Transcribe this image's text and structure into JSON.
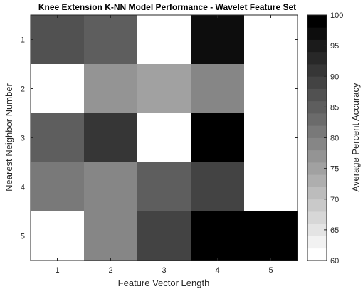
{
  "chart_data": {
    "type": "heatmap",
    "title": "Knee Extension K-NN Model Performance - Wavelet Feature Set",
    "xlabel": "Feature Vector Length",
    "ylabel": "Nearest Neighbor Number",
    "colorbar_label": "Average Percent Accuracy",
    "x_categories": [
      "1",
      "2",
      "3",
      "4",
      "5"
    ],
    "y_categories": [
      "1",
      "2",
      "3",
      "4",
      "5"
    ],
    "colorbar_ticks": [
      "60",
      "65",
      "70",
      "75",
      "80",
      "85",
      "90",
      "95",
      "100"
    ],
    "clim": [
      60,
      100
    ],
    "colormap": "gray-reversed (white = 60, black = 100), 20 levels",
    "values": [
      [
        87,
        84,
        60,
        97,
        60
      ],
      [
        60,
        77,
        74,
        78,
        60
      ],
      [
        85,
        91,
        60,
        100,
        60
      ],
      [
        81,
        79,
        85,
        89,
        60
      ],
      [
        60,
        78,
        89,
        100,
        100
      ]
    ]
  }
}
